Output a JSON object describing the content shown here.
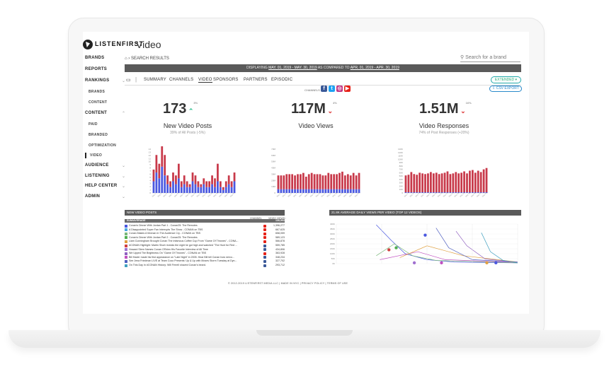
{
  "app": {
    "logo": "LISTENFIRST",
    "title": "Video"
  },
  "sidebar": {
    "items": [
      {
        "label": "BRANDS",
        "sub": false
      },
      {
        "label": "REPORTS",
        "sub": false
      },
      {
        "label": "RANKINGS",
        "sub": false,
        "chevron": "⌄"
      },
      {
        "label": "BRANDS",
        "sub": true
      },
      {
        "label": "CONTENT",
        "sub": true
      },
      {
        "label": "CONTENT",
        "sub": false,
        "chevron": "⌃"
      },
      {
        "label": "PAID",
        "sub": true
      },
      {
        "label": "BRANDED",
        "sub": true
      },
      {
        "label": "OPTIMIZATION",
        "sub": true
      },
      {
        "label": "VIDEO",
        "sub": true,
        "active": true
      },
      {
        "label": "AUDIENCE",
        "sub": false,
        "chevron": "⌄"
      },
      {
        "label": "LISTENING",
        "sub": false,
        "chevron": "⌄"
      },
      {
        "label": "HELP CENTER",
        "sub": false,
        "chevron": "⌄"
      },
      {
        "label": "ADMIN",
        "sub": false,
        "chevron": "⌄"
      }
    ]
  },
  "breadcrumb": "› SEARCH RESULTS",
  "search": {
    "placeholder": "Search for a brand"
  },
  "banner": {
    "prefix": "DISPLAYING",
    "range": "MAY. 01, 2019 - MAY. 30, 2019",
    "middle": "AS COMPARED TO",
    "compare": "APR. 01, 2019 - APR. 30, 2019"
  },
  "tabs": [
    "SUMMARY",
    "CHANNELS",
    "VIDEO",
    "SPONSORS",
    "PARTNERS",
    "EPISODIC"
  ],
  "active_tab": "VIDEO",
  "extended_label": "EXTENDED ▾",
  "export_label": "⇩ CSV EXPORT",
  "channels_label": "CHANNELS",
  "channels": [
    {
      "name": "facebook-icon",
      "glyph": "f",
      "color": "#3b5998"
    },
    {
      "name": "twitter-icon",
      "glyph": "t",
      "color": "#1da1f2"
    },
    {
      "name": "instagram-icon",
      "glyph": "◎",
      "color": "#c13584"
    },
    {
      "name": "youtube-icon",
      "glyph": "▶",
      "color": "#e62117"
    }
  ],
  "metrics": [
    {
      "value": "173",
      "delta": "3%",
      "dir": "up",
      "title": "New Video Posts",
      "sub": "39% of All Posts (-5%)"
    },
    {
      "value": "117M",
      "delta": "4%",
      "dir": "down",
      "title": "Video Views",
      "sub": ""
    },
    {
      "value": "1.51M",
      "delta": "16%",
      "dir": "down",
      "title": "Video Responses",
      "sub": "74% of Post Responses (+20%)"
    }
  ],
  "colors": {
    "red": "#c8394a",
    "blue": "#4a58e0",
    "panel": "#5a5a5a"
  },
  "chart_data": [
    {
      "type": "bar",
      "series": [
        {
          "name": "Video posts (blue)",
          "values": [
            4,
            7,
            5,
            9,
            6,
            3,
            2,
            4,
            3,
            5,
            2,
            3,
            2,
            2,
            4,
            3,
            2,
            2,
            3,
            2,
            2,
            3,
            2,
            4,
            2,
            1,
            2,
            3,
            2,
            4
          ]
        },
        {
          "name": "Video posts (red)",
          "values": [
            4,
            6,
            5,
            11,
            7,
            3,
            2,
            3,
            3,
            5,
            2,
            3,
            2,
            1,
            3,
            3,
            2,
            1,
            2,
            2,
            2,
            3,
            3,
            6,
            2,
            1,
            2,
            3,
            2,
            3
          ]
        }
      ],
      "ylim": [
        0,
        15
      ],
      "yticks": [
        "0",
        "1",
        "2",
        "3",
        "4",
        "5",
        "6",
        "7",
        "8",
        "9",
        "10",
        "11",
        "12",
        "13",
        "14"
      ]
    },
    {
      "type": "bar",
      "series": [
        {
          "name": "Views (blue)",
          "values": [
            6,
            6,
            6,
            6,
            6,
            6,
            6,
            6,
            6,
            6,
            6,
            6,
            6,
            6,
            6,
            6,
            6,
            6,
            6,
            6,
            6,
            6,
            6,
            6,
            6,
            6,
            6,
            6,
            6,
            6
          ]
        },
        {
          "name": "Views (red)",
          "values": [
            22,
            22,
            22,
            24,
            24,
            24,
            22,
            24,
            24,
            26,
            20,
            24,
            26,
            24,
            24,
            24,
            22,
            22,
            26,
            24,
            24,
            24,
            26,
            28,
            22,
            24,
            22,
            26,
            22,
            26
          ]
        }
      ],
      "ylim": [
        0,
        70
      ],
      "yticks": [
        "0",
        "10M",
        "20M",
        "30M",
        "40M",
        "50M",
        "60M",
        "70M"
      ]
    },
    {
      "type": "bar",
      "series": [
        {
          "name": "Responses (blue)",
          "values": [
            2,
            2,
            2,
            2,
            2,
            2,
            2,
            2,
            2,
            2,
            2,
            2,
            2,
            2,
            2,
            2,
            2,
            2,
            2,
            2,
            2,
            2,
            2,
            2,
            2,
            2,
            2,
            2,
            2,
            2
          ]
        },
        {
          "name": "Responses (red)",
          "values": [
            50,
            52,
            60,
            54,
            52,
            58,
            56,
            54,
            56,
            60,
            56,
            58,
            54,
            56,
            58,
            62,
            54,
            56,
            60,
            56,
            58,
            62,
            56,
            64,
            66,
            58,
            64,
            60,
            68,
            72
          ]
        }
      ],
      "ylim": [
        0,
        130
      ],
      "yticks": [
        "0",
        "10K",
        "20K",
        "30K",
        "40K",
        "50K",
        "60K",
        "70K",
        "80K",
        "90K",
        "100K",
        "110K",
        "120K",
        "130K"
      ]
    },
    {
      "type": "line",
      "title": "21.8K AVERAGE DAILY VIEWS PER VIDEO (TOP 12 VIDEOS)",
      "yticks": [
        "0K",
        "50K",
        "100K",
        "150K",
        "200K",
        "250K",
        "300K",
        "350K",
        "400K"
      ]
    }
  ],
  "table": {
    "title": "NEW VIDEO POSTS",
    "col_channel": "CHANNEL",
    "col_views": "VIDEO VIEWS↑",
    "total": "130,902",
    "sum_label": "SUM/AVERAGE",
    "rows": [
      {
        "color": "#4a58e0",
        "title": "Conan's Dinner With Jordan Part 1 - Conan25: The Remotes",
        "ch": "#e62117",
        "views": "1,396,277"
      },
      {
        "color": "#4aa8e0",
        "title": "A Disappointed Super Fan Interrupts The Show - CONAN on TBS",
        "ch": "#e62117",
        "views": "667,625"
      },
      {
        "color": "#7ab87a",
        "title": "Conan Makes A Woman In The Audience Cry - CONAN on TBS",
        "ch": "#e62117",
        "views": "658,059"
      },
      {
        "color": "#50b050",
        "title": "Conan's Dinner With Jordan Part 2 - Conan25: The Remotes",
        "ch": "#e62117",
        "views": "589,123"
      },
      {
        "color": "#e0a040",
        "title": "Liam Cunningham Brought Conan The Infamous Coffee Cup From \"Game Of Thrones\" - CONA...",
        "ch": "#e62117",
        "views": "566,878"
      },
      {
        "color": "#d04040",
        "title": "#CONAN Highlight: Martin Short reveals the night he got high and watched \"The Hunt for Red ...",
        "ch": "#3b5998",
        "views": "559,785"
      },
      {
        "color": "#a070d0",
        "title": "Howard Stern Names Conan O'Brien His Favorite Interview of All Time",
        "ch": "#3b5998",
        "views": "434,806"
      },
      {
        "color": "#9060c0",
        "title": "We Upped The Brightness On \"Game Of Thrones\" - CONAN on TBS",
        "ch": "#e62117",
        "views": "363,928"
      },
      {
        "color": "#c050c0",
        "title": "Bill Hader made his first appearance on \"Late Night\" in 2005. Hear Bill tell Conan how nervo...",
        "ch": "#3b5998",
        "views": "348,234"
      },
      {
        "color": "#5060c0",
        "title": "See Jena Friedman LIVE at Team Coco Presents: Up & Up with Moses Storm Tuesday at Dyn...",
        "ch": "#3b5998",
        "views": "327,702"
      },
      {
        "color": "#40a0c0",
        "title": "On This Day In #CONAN History: Will Ferrell shaved Conan's beard.",
        "ch": "#3b5998",
        "views": "293,712"
      }
    ]
  },
  "footer": "© 2012-2019 LISTENFIRST MEDIA LLC  |  MADE IN NYC  |  PRIVACY POLICY  |  TERMS OF USE"
}
